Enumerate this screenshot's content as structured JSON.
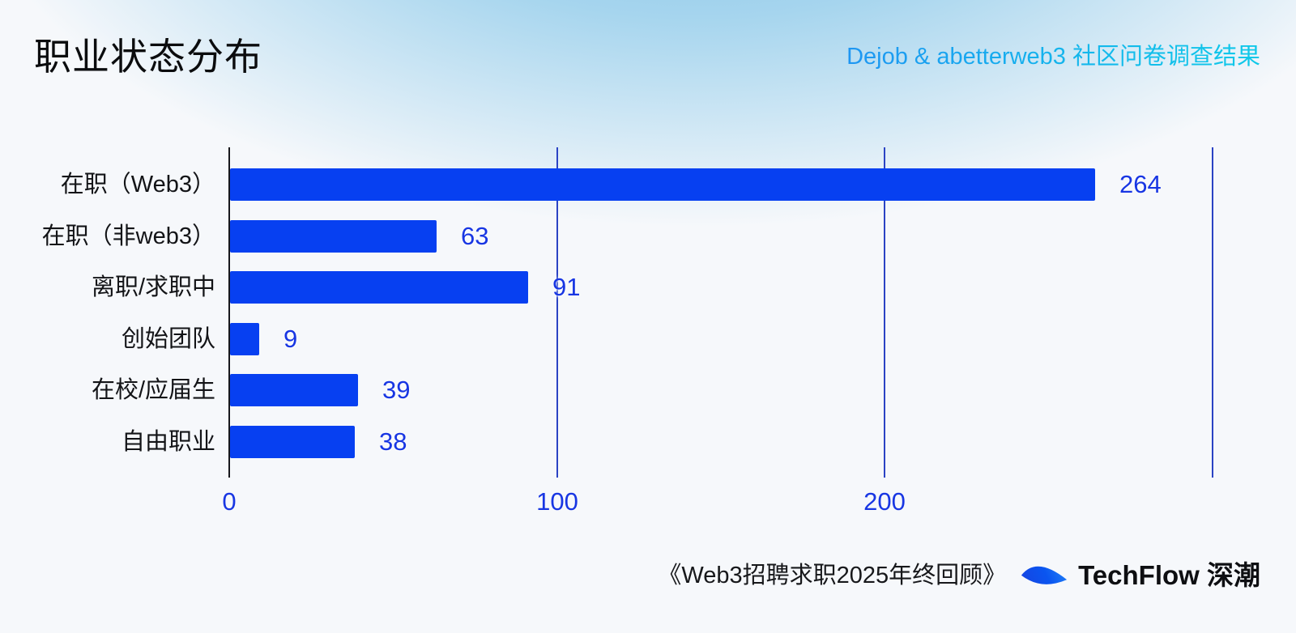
{
  "header": {
    "title": "职业状态分布",
    "subtitle": "Dejob & abetterweb3 社区问卷调查结果"
  },
  "chart_data": {
    "type": "bar",
    "orientation": "horizontal",
    "title": "职业状态分布",
    "categories": [
      "在职（Web3）",
      "在职（非web3）",
      "离职/求职中",
      "创始团队",
      "在校/应届生",
      "自由职业"
    ],
    "values": [
      264,
      63,
      91,
      9,
      39,
      38
    ],
    "xlabel": "",
    "ylabel": "",
    "xlim": [
      0,
      300
    ],
    "xticks": [
      0,
      100,
      200
    ],
    "gridlines": [
      100,
      200,
      300
    ],
    "grid": true,
    "value_labels": true,
    "legend": false
  },
  "footer": {
    "caption": "《Web3招聘求职2025年终回顾》",
    "brand": "TechFlow 深潮"
  },
  "colors": {
    "bar": "#0740f1",
    "value_label": "#1836e3",
    "gridline": "#2b43c4",
    "axis": "#17181c",
    "subtitle_gradient_start": "#1e96f2",
    "subtitle_gradient_end": "#0fc9e9",
    "background": "#f6f8fb",
    "sky": "#7ebde4"
  }
}
